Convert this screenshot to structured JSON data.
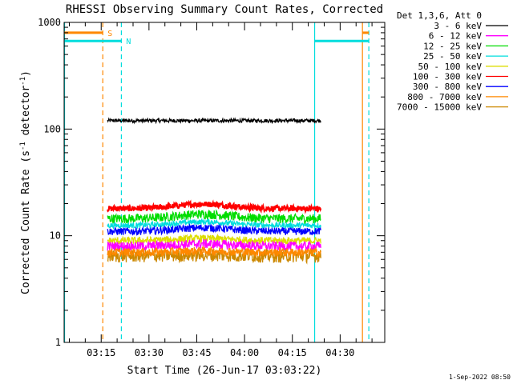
{
  "chart_data": {
    "type": "line",
    "title": "RHESSI Observing Summary Count Rates, Corrected",
    "xlabel": "Start Time (26-Jun-17 03:03:22)",
    "ylabel_parts": {
      "main": "Corrected Count Rate (s",
      "sup1": "-1",
      "mid": " detector",
      "sup2": "-1",
      "end": ")"
    },
    "date_stamp": "1-Sep-2022 08:50",
    "x_start": "03:03:22",
    "x_end": "04:44",
    "xticks": [
      "03:15",
      "03:30",
      "03:45",
      "04:00",
      "04:15",
      "04:30"
    ],
    "yscale": "log",
    "ylim": [
      1,
      1000
    ],
    "yticks": [
      "1",
      "10",
      "100",
      "1000"
    ],
    "legend": {
      "header": "Det 1,3,6, Att 0",
      "entries": [
        {
          "label": "3 - 6 keV",
          "color": "#000000"
        },
        {
          "label": "6 - 12 keV",
          "color": "#ff00ff"
        },
        {
          "label": "12 - 25 keV",
          "color": "#00dd00"
        },
        {
          "label": "25 - 50 keV",
          "color": "#00dddd"
        },
        {
          "label": "50 - 100 keV",
          "color": "#dddd00"
        },
        {
          "label": "100 - 300 keV",
          "color": "#ff0000"
        },
        {
          "label": "300 - 800 keV",
          "color": "#0000ff"
        },
        {
          "label": "800 - 7000 keV",
          "color": "#ff8800"
        },
        {
          "label": "7000 - 15000 keV",
          "color": "#cc8800"
        }
      ]
    },
    "data_window": {
      "start": "03:17",
      "end": "04:24"
    },
    "series": [
      {
        "name": "3 - 6 keV",
        "color": "#000000",
        "level": 120,
        "noise": 0.04,
        "bump": 0.0
      },
      {
        "name": "100 - 300 keV",
        "color": "#ff0000",
        "level": 18,
        "noise": 0.06,
        "bump": 0.1
      },
      {
        "name": "12 - 25 keV",
        "color": "#00dd00",
        "level": 14.5,
        "noise": 0.1,
        "bump": 0.1
      },
      {
        "name": "25 - 50 keV",
        "color": "#00dddd",
        "level": 12.5,
        "noise": 0.06,
        "bump": 0.08
      },
      {
        "name": "300 - 800 keV",
        "color": "#0000ff",
        "level": 11,
        "noise": 0.08,
        "bump": 0.08
      },
      {
        "name": "50 - 100 keV",
        "color": "#dddd00",
        "level": 9,
        "noise": 0.08,
        "bump": 0.05
      },
      {
        "name": "6 - 12 keV",
        "color": "#ff00ff",
        "level": 8,
        "noise": 0.1,
        "bump": 0.05
      },
      {
        "name": "7000 - 15000 keV",
        "color": "#cc8800",
        "level": 6.5,
        "noise": 0.14,
        "bump": 0.02
      },
      {
        "name": "800 - 7000 keV",
        "color": "#ff8800",
        "level": 7,
        "noise": 0.09,
        "bump": 0.03
      }
    ],
    "saa_markers": [
      {
        "label": "S",
        "color": "#ff8800",
        "level": 800,
        "start": "03:03:22",
        "end": "03:15:30"
      },
      {
        "label": "N",
        "color": "#00dddd",
        "level": 670,
        "start": "03:03:22",
        "end": "03:21:20"
      },
      {
        "label": "",
        "color": "#00dddd",
        "level": 670,
        "start": "04:22",
        "end": "04:39"
      },
      {
        "label": "",
        "color": "#ff8800",
        "level": 800,
        "start": "04:37",
        "end": "04:39"
      }
    ],
    "vertical_lines": [
      {
        "time": "03:03:30",
        "color": "#00dddd",
        "style": "solid"
      },
      {
        "time": "03:15:30",
        "color": "#ff8800",
        "style": "dashed"
      },
      {
        "time": "03:21:20",
        "color": "#00dddd",
        "style": "dashed"
      },
      {
        "time": "04:22",
        "color": "#00dddd",
        "style": "solid"
      },
      {
        "time": "04:37",
        "color": "#ff8800",
        "style": "solid"
      },
      {
        "time": "04:39",
        "color": "#00dddd",
        "style": "dashed"
      }
    ]
  }
}
